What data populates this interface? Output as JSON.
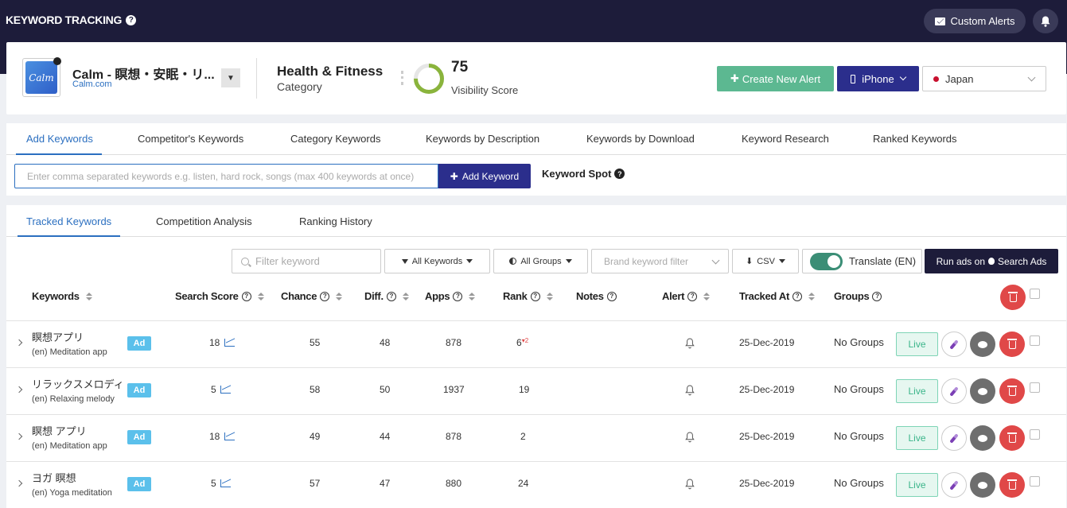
{
  "topbar": {
    "title": "KEYWORD TRACKING",
    "custom_alerts_label": "Custom Alerts"
  },
  "app": {
    "icon_text": "Calm",
    "name": "Calm - 瞑想・安眠・リ...",
    "link": "Calm.com",
    "category_name": "Health & Fitness",
    "category_label": "Category",
    "visibility_score": "75",
    "visibility_label": "Visibility Score",
    "visibility_fraction": 0.75
  },
  "actions": {
    "create_alert_label": "Create New Alert",
    "device_label": "iPhone",
    "country_label": "Japan"
  },
  "keyword_tabs": [
    {
      "label": "Add Keywords",
      "active": true
    },
    {
      "label": "Competitor's Keywords"
    },
    {
      "label": "Category Keywords"
    },
    {
      "label": "Keywords by Description"
    },
    {
      "label": "Keywords by Download"
    },
    {
      "label": "Keyword Research"
    },
    {
      "label": "Ranked Keywords"
    }
  ],
  "add_keyword": {
    "placeholder": "Enter comma separated keywords e.g. listen, hard rock, songs (max 400 keywords at once)",
    "button_label": "Add Keyword",
    "spot_label": "Keyword Spot"
  },
  "tracked_tabs": [
    {
      "label": "Tracked Keywords",
      "active": true
    },
    {
      "label": "Competition Analysis"
    },
    {
      "label": "Ranking History"
    }
  ],
  "filters": {
    "filter_placeholder": "Filter keyword",
    "all_keywords": "All Keywords",
    "all_groups": "All Groups",
    "brand_filter": "Brand keyword filter",
    "csv": "CSV",
    "translate": "Translate (EN)",
    "run_ads_prefix": "Run ads on",
    "run_ads_suffix": "Search Ads"
  },
  "columns": {
    "keywords": "Keywords",
    "search_score": "Search Score",
    "chance": "Chance",
    "diff": "Diff.",
    "apps": "Apps",
    "rank": "Rank",
    "notes": "Notes",
    "alert": "Alert",
    "tracked_at": "Tracked At",
    "groups": "Groups"
  },
  "rows": [
    {
      "keyword": "瞑想アプリ",
      "translation": "(en) Meditation app",
      "ad": "Ad",
      "search_score": "18",
      "chance": "55",
      "diff": "48",
      "apps": "878",
      "rank": "6",
      "rank_change": "▾2",
      "tracked_at": "25-Dec-2019",
      "groups": "No Groups",
      "status": "Live"
    },
    {
      "keyword": "リラックスメロディ",
      "translation": "(en) Relaxing melody",
      "ad": "Ad",
      "search_score": "5",
      "chance": "58",
      "diff": "50",
      "apps": "1937",
      "rank": "19",
      "rank_change": "",
      "tracked_at": "25-Dec-2019",
      "groups": "No Groups",
      "status": "Live"
    },
    {
      "keyword": "瞑想 アプリ",
      "translation": "(en) Meditation app",
      "ad": "Ad",
      "search_score": "18",
      "chance": "49",
      "diff": "44",
      "apps": "878",
      "rank": "2",
      "rank_change": "",
      "tracked_at": "25-Dec-2019",
      "groups": "No Groups",
      "status": "Live"
    },
    {
      "keyword": "ヨガ 瞑想",
      "translation": "(en) Yoga meditation",
      "ad": "Ad",
      "search_score": "5",
      "chance": "57",
      "diff": "47",
      "apps": "880",
      "rank": "24",
      "rank_change": "",
      "tracked_at": "25-Dec-2019",
      "groups": "No Groups",
      "status": "Live"
    }
  ],
  "colors": {
    "topbar": "#1d1c3a",
    "accent_blue": "#2b6fc0",
    "primary_button": "#2b2e8c",
    "create_alert": "#5cb891",
    "delete": "#e04848",
    "live": "#3bb58a",
    "gauge": "#8ab43c"
  }
}
